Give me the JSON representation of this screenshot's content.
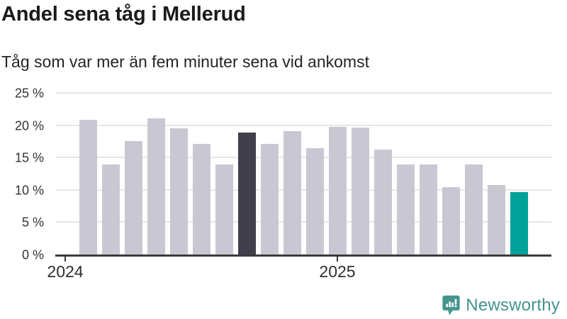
{
  "header": {
    "title": "Andel sena tåg i Mellerud",
    "subtitle": "Tåg som var mer än fem minuter sena vid ankomst"
  },
  "chart_data": {
    "type": "bar",
    "title": "Andel sena tåg i Mellerud",
    "subtitle": "Tåg som var mer än fem minuter sena vid ankomst",
    "unit": "%",
    "ylim": [
      0,
      25
    ],
    "grid": "horizontal",
    "legend": "none",
    "y_ticks": [
      {
        "value": 0,
        "label": "0 %"
      },
      {
        "value": 5,
        "label": "5 %"
      },
      {
        "value": 10,
        "label": "10 %"
      },
      {
        "value": 15,
        "label": "15 %"
      },
      {
        "value": 20,
        "label": "20 %"
      },
      {
        "value": 25,
        "label": "25 %"
      }
    ],
    "x_ticks": [
      {
        "label": "2024",
        "month": "2024-01"
      },
      {
        "label": "2025",
        "month": "2025-01"
      }
    ],
    "categories": [
      "2024-02",
      "2024-03",
      "2024-04",
      "2024-05",
      "2024-06",
      "2024-07",
      "2024-08",
      "2024-09",
      "2024-10",
      "2024-11",
      "2024-12",
      "2025-01",
      "2025-02",
      "2025-03",
      "2025-04",
      "2025-05",
      "2025-06",
      "2025-07",
      "2025-08",
      "2025-09"
    ],
    "values": [
      20.8,
      13.9,
      17.6,
      21.0,
      19.5,
      17.1,
      13.9,
      18.9,
      17.1,
      19.1,
      16.5,
      19.7,
      19.6,
      16.2,
      13.9,
      13.9,
      10.4,
      13.9,
      10.8,
      9.7
    ],
    "highlight": {
      "7": "dark",
      "19": "teal"
    }
  },
  "colors": {
    "bar_default": "#c9c8d2",
    "bar_dark": "#413f4c",
    "bar_teal": "#00a29a",
    "axis_line": "#3a3a3a",
    "gridline": "#e6e6e6",
    "title_text": "#1a1a1a",
    "logo": "#43958e"
  },
  "footer": {
    "brand": "Newsworthy"
  }
}
